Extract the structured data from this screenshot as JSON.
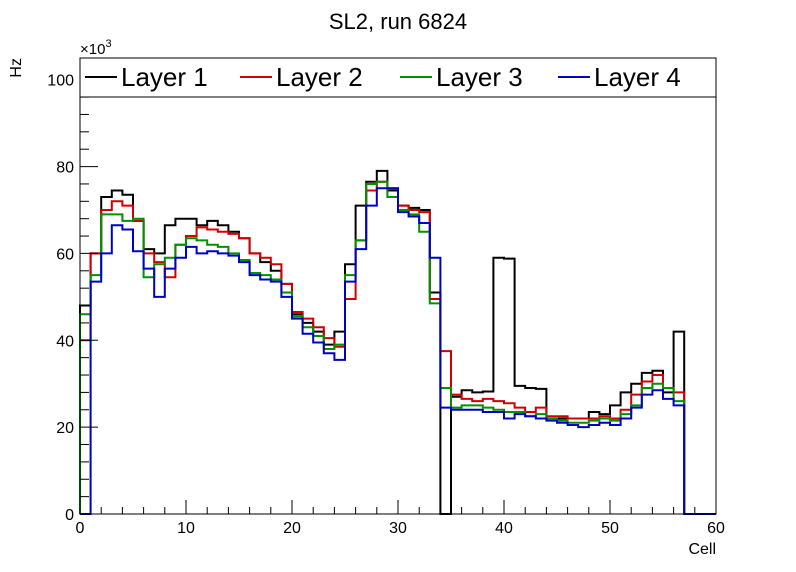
{
  "chart_data": {
    "type": "line",
    "title": "SL2, run 6824",
    "xlabel": "Cell",
    "ylabel": "Hz",
    "y_multiplier_label": "×10",
    "y_multiplier_exponent": "3",
    "xlim": [
      0,
      60
    ],
    "ylim": [
      0,
      105
    ],
    "x_ticks": [
      0,
      10,
      20,
      30,
      40,
      50,
      60
    ],
    "y_ticks": [
      0,
      20,
      40,
      60,
      80,
      100
    ],
    "grid": false,
    "legend_position": "top",
    "step": true,
    "bin_edges": [
      0,
      1,
      2,
      3,
      4,
      5,
      6,
      7,
      8,
      9,
      10,
      11,
      12,
      13,
      14,
      15,
      16,
      17,
      18,
      19,
      20,
      21,
      22,
      23,
      24,
      25,
      26,
      27,
      28,
      29,
      30,
      31,
      32,
      33,
      34,
      35,
      36,
      37,
      38,
      39,
      40,
      41,
      42,
      43,
      44,
      45,
      46,
      47,
      48,
      49,
      50,
      51,
      52,
      53,
      54,
      55,
      56,
      57,
      58,
      59,
      60
    ],
    "series": [
      {
        "name": "Layer 1",
        "color": "#000000",
        "values": [
          48,
          60,
          73,
          74.5,
          73.5,
          67.5,
          61,
          60,
          66.5,
          68,
          68,
          66.5,
          67.5,
          66.5,
          65,
          63.5,
          60,
          58,
          56,
          53,
          46,
          44,
          42,
          39,
          42,
          57.5,
          71,
          76.5,
          79,
          74.5,
          71,
          70.5,
          70,
          51,
          0,
          27,
          28.5,
          28,
          28.2,
          59,
          58.8,
          29.5,
          29,
          28.8,
          22,
          22,
          22,
          22,
          23.5,
          23,
          25,
          28,
          30,
          32.5,
          33,
          28,
          42,
          0,
          0,
          0
        ]
      },
      {
        "name": "Layer 2",
        "color": "#d00000",
        "values": [
          40,
          60,
          70,
          72,
          71,
          67.5,
          60,
          58,
          54.5,
          62,
          64,
          66,
          65.5,
          65,
          64.5,
          63.5,
          60,
          59,
          57.5,
          53,
          46.5,
          45,
          43,
          40.5,
          38.5,
          49.5,
          63,
          74.5,
          76.5,
          75,
          71,
          70,
          69.5,
          49.5,
          37.5,
          27.5,
          26.5,
          26,
          26.5,
          26,
          25.5,
          24.5,
          23.5,
          24.5,
          22.5,
          22.5,
          22,
          22,
          22,
          22.5,
          22,
          24,
          27.5,
          30.5,
          32,
          29,
          28,
          0,
          0,
          0
        ]
      },
      {
        "name": "Layer 3",
        "color": "#009000",
        "values": [
          46,
          55,
          69,
          69,
          67.5,
          68,
          54.5,
          57.5,
          59,
          62,
          63.5,
          63,
          62,
          61.5,
          60,
          58.5,
          55.5,
          55,
          54,
          51,
          45.5,
          43,
          41,
          38,
          39,
          55,
          63,
          76,
          76.5,
          73,
          70,
          69,
          65,
          48.5,
          29,
          24.5,
          25,
          25,
          24.5,
          24,
          23.5,
          23.5,
          22.5,
          23,
          22,
          21.5,
          21,
          21,
          21.5,
          22,
          21.5,
          23,
          25,
          29,
          30,
          29,
          26,
          0,
          0,
          0
        ]
      },
      {
        "name": "Layer 4",
        "color": "#0000c0",
        "values": [
          0,
          53.5,
          60,
          66.5,
          65.5,
          60.5,
          56.5,
          50,
          56.5,
          59,
          61.5,
          60,
          60.5,
          60,
          59.5,
          58,
          55,
          54,
          53.5,
          50,
          45,
          41.5,
          39.5,
          37,
          35.5,
          53.5,
          61,
          71,
          75,
          75,
          69.5,
          68.5,
          67,
          59,
          24.5,
          24,
          24,
          24,
          23.5,
          23.5,
          22,
          23,
          22.5,
          22,
          21.5,
          21,
          20.5,
          20,
          20.5,
          21,
          20.5,
          22,
          24.5,
          27.5,
          28.5,
          26.5,
          25,
          0,
          0,
          0
        ]
      }
    ]
  }
}
